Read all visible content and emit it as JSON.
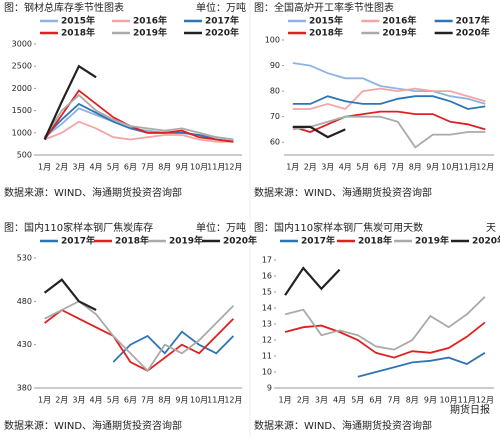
{
  "chart_data": [
    {
      "type": "line",
      "title": "图：钢材总库存季节性图表",
      "unit": "单位：万吨",
      "source": "数据来源：WIND、海通期货投资咨询部",
      "categories": [
        "1月",
        "2月",
        "3月",
        "4月",
        "5月",
        "6月",
        "7月",
        "8月",
        "9月",
        "10月",
        "11月",
        "12月"
      ],
      "ylim": [
        500,
        3000
      ],
      "yticks": [
        500,
        1000,
        1500,
        2000,
        2500,
        3000
      ],
      "series": [
        {
          "name": "2015年",
          "color": "#8db3e2",
          "values": [
            900,
            1200,
            1550,
            1400,
            1250,
            1100,
            1050,
            1000,
            1000,
            950,
            900,
            850
          ]
        },
        {
          "name": "2016年",
          "color": "#f4a6a6",
          "values": [
            850,
            1000,
            1250,
            1100,
            900,
            850,
            900,
            950,
            950,
            850,
            800,
            800
          ]
        },
        {
          "name": "2017年",
          "color": "#2e75b6",
          "values": [
            900,
            1300,
            1650,
            1450,
            1250,
            1100,
            1000,
            1000,
            1000,
            950,
            850,
            800
          ]
        },
        {
          "name": "2018年",
          "color": "#e02020",
          "values": [
            850,
            1400,
            1950,
            1650,
            1350,
            1150,
            1000,
            1000,
            1050,
            900,
            850,
            800
          ]
        },
        {
          "name": "2019年",
          "color": "#aaaaaa",
          "values": [
            900,
            1500,
            1850,
            1500,
            1300,
            1150,
            1100,
            1050,
            1100,
            1000,
            900,
            850
          ]
        },
        {
          "name": "2020年",
          "color": "#222222",
          "values": [
            850,
            1700,
            2500,
            2250,
            null,
            null,
            null,
            null,
            null,
            null,
            null,
            null
          ]
        }
      ]
    },
    {
      "type": "line",
      "title": "图：全国高炉开工率季节性图表",
      "source": "数据来源：WIND、海通期货投资咨询部",
      "categories": [
        "1月",
        "2月",
        "3月",
        "4月",
        "5月",
        "6月",
        "7月",
        "8月",
        "9月",
        "10月",
        "11月",
        "12月"
      ],
      "ylim": [
        55,
        100
      ],
      "yticks": [
        60,
        70,
        80,
        90,
        100
      ],
      "series": [
        {
          "name": "2015年",
          "color": "#8db3e2",
          "values": [
            91,
            90,
            87,
            85,
            85,
            82,
            81,
            80,
            80,
            78,
            77,
            75
          ]
        },
        {
          "name": "2016年",
          "color": "#f4a6a6",
          "values": [
            73,
            73,
            75,
            73,
            80,
            81,
            80,
            81,
            80,
            80,
            78,
            76
          ]
        },
        {
          "name": "2017年",
          "color": "#2e75b6",
          "values": [
            75,
            75,
            78,
            76,
            75,
            75,
            77,
            78,
            78,
            76,
            73,
            74
          ]
        },
        {
          "name": "2018年",
          "color": "#e02020",
          "values": [
            66,
            64,
            67,
            70,
            71,
            72,
            72,
            71,
            71,
            68,
            67,
            65
          ]
        },
        {
          "name": "2019年",
          "color": "#aaaaaa",
          "values": [
            65,
            66,
            68,
            70,
            70,
            70,
            68,
            58,
            63,
            63,
            64,
            64
          ]
        },
        {
          "name": "2020年",
          "color": "#222222",
          "values": [
            66,
            66,
            62,
            65,
            null,
            null,
            null,
            null,
            null,
            null,
            null,
            null
          ]
        }
      ]
    },
    {
      "type": "line",
      "title": "图：国内110家样本钢厂焦炭库存",
      "unit": "单位：万吨",
      "source": "数据来源：WIND、海通期货投资咨询部",
      "categories": [
        "1月",
        "2月",
        "3月",
        "4月",
        "5月",
        "6月",
        "7月",
        "8月",
        "9月",
        "10月",
        "11月",
        "12月"
      ],
      "ylim": [
        380,
        530
      ],
      "yticks": [
        380,
        430,
        480,
        530
      ],
      "series": [
        {
          "name": "2017年",
          "color": "#2e75b6",
          "values": [
            null,
            null,
            null,
            null,
            410,
            430,
            440,
            420,
            445,
            430,
            420,
            440
          ]
        },
        {
          "name": "2018年",
          "color": "#e02020",
          "values": [
            455,
            470,
            460,
            450,
            440,
            410,
            400,
            415,
            430,
            420,
            440,
            460
          ]
        },
        {
          "name": "2019年",
          "color": "#aaaaaa",
          "values": [
            460,
            470,
            480,
            465,
            440,
            420,
            400,
            430,
            420,
            435,
            455,
            475
          ]
        },
        {
          "name": "2020年",
          "color": "#222222",
          "values": [
            490,
            505,
            480,
            470,
            null,
            null,
            null,
            null,
            null,
            null,
            null,
            null
          ]
        }
      ]
    },
    {
      "type": "line",
      "title": "图：国内110家样本钢厂焦炭可用天数",
      "unit": "天",
      "source": "数据来源：WIND、海通期货投资咨询部",
      "watermark": "期货日报",
      "categories": [
        "1月",
        "2月",
        "3月",
        "4月",
        "5月",
        "6月",
        "7月",
        "8月",
        "9月",
        "10月",
        "11月",
        "12月"
      ],
      "ylim": [
        9,
        17
      ],
      "yticks": [
        9,
        10,
        11,
        12,
        13,
        14,
        15,
        16,
        17
      ],
      "series": [
        {
          "name": "2017年",
          "color": "#2e75b6",
          "values": [
            null,
            null,
            null,
            null,
            9.7,
            10,
            10.3,
            10.6,
            10.7,
            10.9,
            10.5,
            11.2
          ]
        },
        {
          "name": "2018年",
          "color": "#e02020",
          "values": [
            12.5,
            12.8,
            12.9,
            12.5,
            12,
            11.2,
            10.9,
            11.3,
            11.2,
            11.5,
            12.2,
            13.1
          ]
        },
        {
          "name": "2019年",
          "color": "#aaaaaa",
          "values": [
            13.6,
            13.9,
            12.3,
            12.6,
            12.3,
            11.6,
            11.4,
            12,
            13.5,
            12.8,
            13.6,
            14.7
          ]
        },
        {
          "name": "2020年",
          "color": "#222222",
          "values": [
            14.8,
            16.5,
            15.2,
            16.4,
            null,
            null,
            null,
            null,
            null,
            null,
            null,
            null
          ]
        }
      ]
    }
  ]
}
